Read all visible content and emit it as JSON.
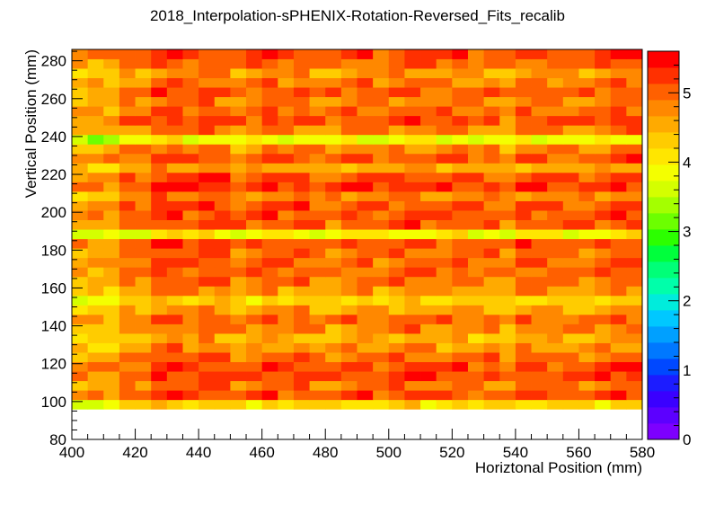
{
  "chart_data": {
    "type": "heatmap",
    "title": "2018_Interpolation-sPHENIX-Rotation-Reversed_Fits_recalib",
    "xlabel": "Horiztonal Position (mm)",
    "ylabel": "Vertical Position (mm)",
    "xlim": [
      400,
      580
    ],
    "ylim": [
      80,
      286
    ],
    "x_ticks": [
      "400",
      "420",
      "440",
      "460",
      "480",
      "500",
      "520",
      "540",
      "560",
      "580"
    ],
    "y_ticks": [
      "80",
      "100",
      "120",
      "140",
      "160",
      "180",
      "200",
      "220",
      "240",
      "260",
      "280"
    ],
    "z_range": [
      0,
      5.6
    ],
    "z_ticks": [
      "0",
      "1",
      "2",
      "3",
      "4",
      "5"
    ],
    "bin_width": 5,
    "bin_height": 5,
    "x_bin_start": 400,
    "y_bin_start": 96,
    "row_base_values": [
      4.15,
      5.05,
      4.85,
      5.1,
      5.05,
      4.9,
      4.65,
      4.45,
      4.75,
      4.9,
      4.55,
      4.2,
      4.65,
      4.85,
      4.9,
      4.95,
      4.9,
      5.05,
      3.9,
      5.0,
      5.05,
      5.05,
      4.75,
      5.2,
      5.05,
      4.55,
      5.0,
      4.75,
      3.8,
      4.8,
      5.05,
      4.9,
      4.75,
      5.0,
      4.8,
      4.6,
      4.9,
      5.1
    ],
    "col_offsets": [
      -0.35,
      -0.3,
      -0.35,
      0.0,
      -0.1,
      0.2,
      0.25,
      0.05,
      0.2,
      0.15,
      -0.1,
      0.0,
      0.2,
      0.0,
      0.1,
      -0.05,
      -0.1,
      0.05,
      0.1,
      -0.05,
      0.05,
      0.15,
      0.05,
      0.0,
      0.1,
      -0.05,
      0.0,
      -0.2,
      0.1,
      0.05,
      0.05,
      0.0,
      -0.05,
      0.05,
      0.2,
      0.15,
      0.05,
      -0.2
    ]
  }
}
